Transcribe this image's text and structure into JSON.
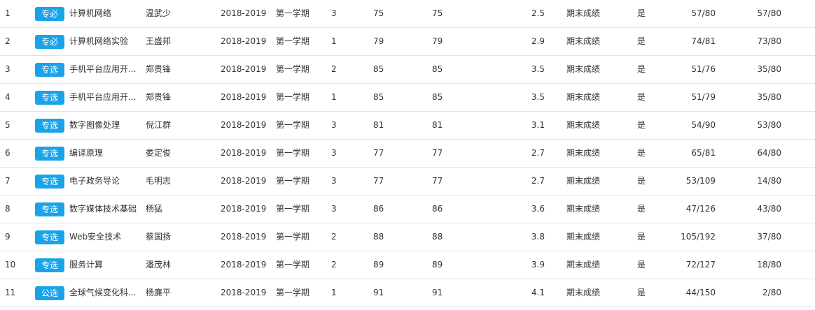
{
  "rows": [
    {
      "idx": "1",
      "tag": "专必",
      "course": "计算机网络",
      "teacher": "温武少",
      "year": "2018-2019",
      "term": "第一学期",
      "credit": "3",
      "score": "75",
      "final_score": "75",
      "gpa": "2.5",
      "score_type": "期末成绩",
      "flag": "是",
      "rank_a": "57/80",
      "rank_b": "57/80"
    },
    {
      "idx": "2",
      "tag": "专必",
      "course": "计算机网络实验",
      "teacher": "王盛邦",
      "year": "2018-2019",
      "term": "第一学期",
      "credit": "1",
      "score": "79",
      "final_score": "79",
      "gpa": "2.9",
      "score_type": "期末成绩",
      "flag": "是",
      "rank_a": "74/81",
      "rank_b": "73/80"
    },
    {
      "idx": "3",
      "tag": "专选",
      "course": "手机平台应用开...",
      "teacher": "郑贵锋",
      "year": "2018-2019",
      "term": "第一学期",
      "credit": "2",
      "score": "85",
      "final_score": "85",
      "gpa": "3.5",
      "score_type": "期末成绩",
      "flag": "是",
      "rank_a": "51/76",
      "rank_b": "35/80"
    },
    {
      "idx": "4",
      "tag": "专选",
      "course": "手机平台应用开...",
      "teacher": "郑贵锋",
      "year": "2018-2019",
      "term": "第一学期",
      "credit": "1",
      "score": "85",
      "final_score": "85",
      "gpa": "3.5",
      "score_type": "期末成绩",
      "flag": "是",
      "rank_a": "51/79",
      "rank_b": "35/80"
    },
    {
      "idx": "5",
      "tag": "专选",
      "course": "数字图像处理",
      "teacher": "倪江群",
      "year": "2018-2019",
      "term": "第一学期",
      "credit": "3",
      "score": "81",
      "final_score": "81",
      "gpa": "3.1",
      "score_type": "期末成绩",
      "flag": "是",
      "rank_a": "54/90",
      "rank_b": "53/80"
    },
    {
      "idx": "6",
      "tag": "专选",
      "course": "编译原理",
      "teacher": "娄定俊",
      "year": "2018-2019",
      "term": "第一学期",
      "credit": "3",
      "score": "77",
      "final_score": "77",
      "gpa": "2.7",
      "score_type": "期末成绩",
      "flag": "是",
      "rank_a": "65/81",
      "rank_b": "64/80"
    },
    {
      "idx": "7",
      "tag": "专选",
      "course": "电子政务导论",
      "teacher": "毛明志",
      "year": "2018-2019",
      "term": "第一学期",
      "credit": "3",
      "score": "77",
      "final_score": "77",
      "gpa": "2.7",
      "score_type": "期末成绩",
      "flag": "是",
      "rank_a": "53/109",
      "rank_b": "14/80"
    },
    {
      "idx": "8",
      "tag": "专选",
      "course": "数字媒体技术基础",
      "teacher": "杨猛",
      "year": "2018-2019",
      "term": "第一学期",
      "credit": "3",
      "score": "86",
      "final_score": "86",
      "gpa": "3.6",
      "score_type": "期末成绩",
      "flag": "是",
      "rank_a": "47/126",
      "rank_b": "43/80"
    },
    {
      "idx": "9",
      "tag": "专选",
      "course": "Web安全技术",
      "teacher": "蔡国扬",
      "year": "2018-2019",
      "term": "第一学期",
      "credit": "2",
      "score": "88",
      "final_score": "88",
      "gpa": "3.8",
      "score_type": "期末成绩",
      "flag": "是",
      "rank_a": "105/192",
      "rank_b": "37/80"
    },
    {
      "idx": "10",
      "tag": "专选",
      "course": "服务计算",
      "teacher": "潘茂林",
      "year": "2018-2019",
      "term": "第一学期",
      "credit": "2",
      "score": "89",
      "final_score": "89",
      "gpa": "3.9",
      "score_type": "期末成绩",
      "flag": "是",
      "rank_a": "72/127",
      "rank_b": "18/80"
    },
    {
      "idx": "11",
      "tag": "公选",
      "course": "全球气候变化科...",
      "teacher": "杨廉平",
      "year": "2018-2019",
      "term": "第一学期",
      "credit": "1",
      "score": "91",
      "final_score": "91",
      "gpa": "4.1",
      "score_type": "期末成绩",
      "flag": "是",
      "rank_a": "44/150",
      "rank_b": "2/80"
    }
  ]
}
